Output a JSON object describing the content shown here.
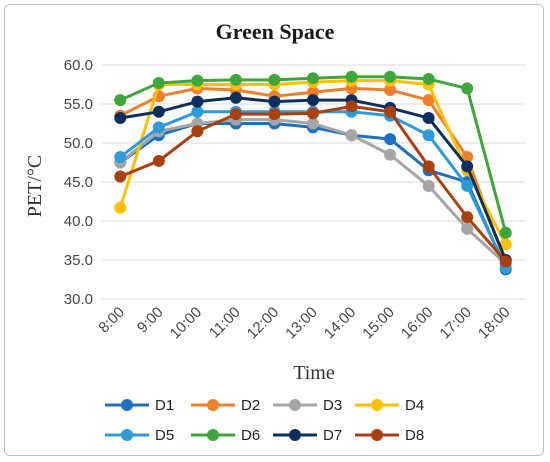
{
  "chart_data": {
    "type": "line",
    "title": "Green Space",
    "xlabel": "Time",
    "ylabel": "PET/°C",
    "ylim": [
      30.0,
      60.0
    ],
    "yticks": [
      "30.0",
      "35.0",
      "40.0",
      "45.0",
      "50.0",
      "55.0",
      "60.0"
    ],
    "categories": [
      "8:00",
      "9:00",
      "10:00",
      "11:00",
      "12:00",
      "13:00",
      "14:00",
      "15:00",
      "16:00",
      "17:00",
      "18:00"
    ],
    "grid": true,
    "legend_position": "bottom",
    "series": [
      {
        "name": "D1",
        "color": "#1f6fbf",
        "values": [
          47.5,
          51.0,
          52.5,
          52.5,
          52.5,
          52.0,
          51.0,
          50.5,
          46.5,
          45.0,
          33.8
        ]
      },
      {
        "name": "D2",
        "color": "#f07f2c",
        "values": [
          53.5,
          56.0,
          57.0,
          56.8,
          56.0,
          56.5,
          57.0,
          56.8,
          55.5,
          48.2,
          34.5
        ]
      },
      {
        "name": "D3",
        "color": "#a5a5a5",
        "values": [
          47.5,
          51.5,
          52.5,
          53.0,
          53.0,
          52.5,
          51.0,
          48.5,
          44.5,
          39.0,
          34.5
        ]
      },
      {
        "name": "D4",
        "color": "#ffc000",
        "values": [
          41.7,
          57.5,
          57.5,
          57.5,
          57.5,
          57.8,
          58.0,
          58.0,
          57.5,
          46.5,
          37.0
        ]
      },
      {
        "name": "D5",
        "color": "#2e9ad8",
        "values": [
          48.2,
          52.0,
          54.0,
          54.0,
          54.0,
          54.0,
          54.0,
          53.5,
          51.0,
          44.5,
          34.0
        ]
      },
      {
        "name": "D6",
        "color": "#3ea63a",
        "values": [
          55.5,
          57.7,
          58.0,
          58.1,
          58.1,
          58.3,
          58.5,
          58.5,
          58.2,
          57.0,
          38.5
        ]
      },
      {
        "name": "D7",
        "color": "#0d2f5e",
        "values": [
          53.2,
          54.0,
          55.3,
          55.8,
          55.3,
          55.5,
          55.5,
          54.5,
          53.2,
          47.0,
          35.0
        ]
      },
      {
        "name": "D8",
        "color": "#a8400f",
        "values": [
          45.7,
          47.7,
          51.5,
          53.7,
          53.7,
          53.8,
          54.7,
          54.0,
          47.0,
          40.5,
          34.8
        ]
      }
    ]
  }
}
